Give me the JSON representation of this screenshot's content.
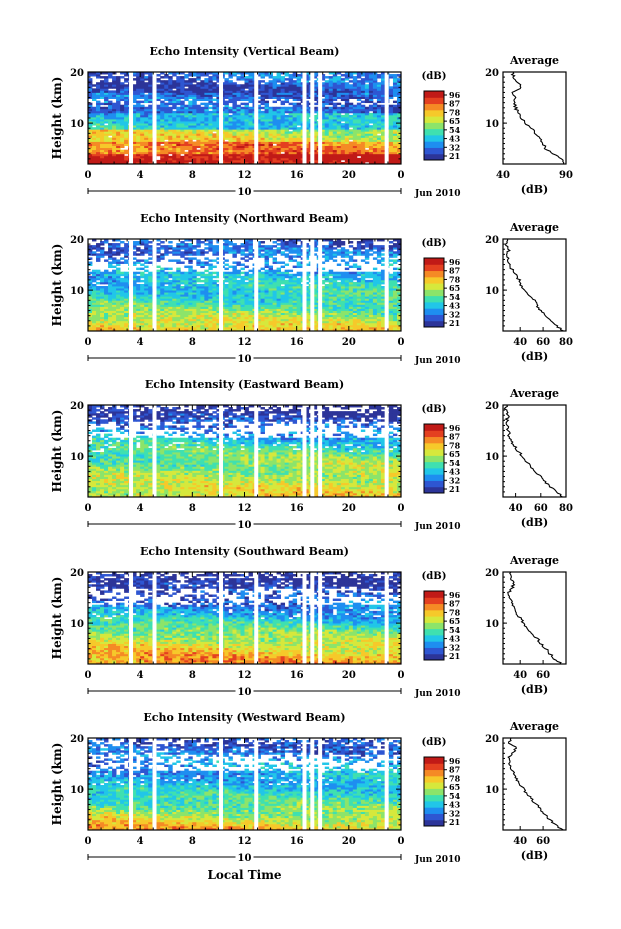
{
  "figure": {
    "xlabel": "Local Time",
    "date_label": "Jun 2010",
    "day_label": "10",
    "colorbar_unit": "(dB)",
    "colorbar_ticks": [
      "96",
      "87",
      "78",
      "65",
      "54",
      "43",
      "32",
      "21"
    ],
    "colors": [
      "#2c3499",
      "#2e56d2",
      "#1e8ef0",
      "#21c6e8",
      "#3fe0b0",
      "#8ce46a",
      "#d6e83c",
      "#f6c92a",
      "#f58a25",
      "#e44020",
      "#c11a17"
    ]
  },
  "chart_data": [
    {
      "type": "heatmap",
      "title": "Echo Intensity (Vertical Beam)",
      "ylabel": "Height (km)",
      "xlim": [
        0,
        24
      ],
      "ylim": [
        2,
        20
      ],
      "x_ticks": [
        "0",
        "4",
        "8",
        "12",
        "16",
        "20",
        "0"
      ],
      "y_ticks": [
        "10",
        "20"
      ],
      "data_gaps_hours": [
        3.3,
        5.1,
        10.2,
        12.9,
        16.6,
        17.2,
        17.8,
        22.9
      ],
      "profile": {
        "title": "Average",
        "xlabel": "(dB)",
        "xlim": [
          40,
          90
        ],
        "x_ticks": [
          "40",
          "90"
        ],
        "y_ticks": [
          "10",
          "20"
        ],
        "height_km": [
          2,
          3,
          4,
          5,
          6,
          7,
          8,
          9,
          10,
          11,
          12,
          13,
          14,
          15,
          16,
          17,
          18,
          19,
          20
        ],
        "value_db": [
          88,
          86,
          80,
          74,
          72,
          70,
          66,
          63,
          58,
          54,
          52,
          50,
          49,
          50,
          48,
          55,
          52,
          48,
          48
        ]
      }
    },
    {
      "type": "heatmap",
      "title": "Echo Intensity (Northward Beam)",
      "ylabel": "Height (km)",
      "xlim": [
        0,
        24
      ],
      "ylim": [
        2,
        20
      ],
      "x_ticks": [
        "0",
        "4",
        "8",
        "12",
        "16",
        "20",
        "0"
      ],
      "y_ticks": [
        "10",
        "20"
      ],
      "data_gaps_hours": [
        3.3,
        5.1,
        10.2,
        12.9,
        16.6,
        17.2,
        17.8,
        22.9
      ],
      "profile": {
        "title": "Average",
        "xlabel": "(dB)",
        "xlim": [
          25,
          80
        ],
        "x_ticks": [
          "40",
          "60",
          "80"
        ],
        "y_ticks": [
          "10",
          "20"
        ],
        "height_km": [
          2,
          3,
          4,
          5,
          6,
          7,
          8,
          9,
          10,
          11,
          12,
          13,
          14,
          15,
          16,
          17,
          18,
          19,
          20
        ],
        "value_db": [
          78,
          72,
          66,
          62,
          58,
          55,
          52,
          48,
          44,
          41,
          39,
          36,
          33,
          31,
          30,
          29,
          30,
          28,
          29
        ]
      }
    },
    {
      "type": "heatmap",
      "title": "Echo Intensity (Eastward Beam)",
      "ylabel": "Height (km)",
      "xlim": [
        0,
        24
      ],
      "ylim": [
        2,
        20
      ],
      "x_ticks": [
        "0",
        "4",
        "8",
        "12",
        "16",
        "20",
        "0"
      ],
      "y_ticks": [
        "10",
        "20"
      ],
      "data_gaps_hours": [
        3.3,
        5.1,
        10.2,
        12.9,
        16.6,
        17.2,
        17.8,
        22.9
      ],
      "profile": {
        "title": "Average",
        "xlabel": "(dB)",
        "xlim": [
          30,
          80
        ],
        "x_ticks": [
          "40",
          "60",
          "80"
        ],
        "y_ticks": [
          "10",
          "20"
        ],
        "height_km": [
          2,
          3,
          4,
          5,
          6,
          7,
          8,
          9,
          10,
          11,
          12,
          13,
          14,
          15,
          16,
          17,
          18,
          19,
          20
        ],
        "value_db": [
          78,
          73,
          68,
          63,
          60,
          56,
          52,
          48,
          45,
          42,
          39,
          37,
          35,
          34,
          33,
          33,
          34,
          32,
          33
        ]
      }
    },
    {
      "type": "heatmap",
      "title": "Echo Intensity (Southward Beam)",
      "ylabel": "Height (km)",
      "xlim": [
        0,
        24
      ],
      "ylim": [
        2,
        20
      ],
      "x_ticks": [
        "0",
        "4",
        "8",
        "12",
        "16",
        "20",
        "0"
      ],
      "y_ticks": [
        "10",
        "20"
      ],
      "data_gaps_hours": [
        3.3,
        5.1,
        10.2,
        12.9,
        16.6,
        17.2,
        17.8,
        22.9
      ],
      "profile": {
        "title": "Average",
        "xlabel": "(dB)",
        "xlim": [
          25,
          80
        ],
        "x_ticks": [
          "40",
          "60"
        ],
        "y_ticks": [
          "10",
          "20"
        ],
        "height_km": [
          2,
          3,
          4,
          5,
          6,
          7,
          8,
          9,
          10,
          11,
          12,
          13,
          14,
          15,
          16,
          17,
          18,
          19,
          20
        ],
        "value_db": [
          76,
          70,
          66,
          62,
          58,
          55,
          50,
          47,
          43,
          40,
          37,
          35,
          32,
          31,
          30,
          33,
          35,
          31,
          32
        ]
      }
    },
    {
      "type": "heatmap",
      "title": "Echo Intensity (Westward Beam)",
      "ylabel": "Height (km)",
      "xlim": [
        0,
        24
      ],
      "ylim": [
        2,
        20
      ],
      "x_ticks": [
        "0",
        "4",
        "8",
        "12",
        "16",
        "20",
        "0"
      ],
      "y_ticks": [
        "10",
        "20"
      ],
      "data_gaps_hours": [
        3.3,
        5.1,
        10.2,
        12.9,
        16.6,
        17.2,
        17.8,
        22.9
      ],
      "profile": {
        "title": "Average",
        "xlabel": "(dB)",
        "xlim": [
          25,
          80
        ],
        "x_ticks": [
          "40",
          "60"
        ],
        "y_ticks": [
          "10",
          "20"
        ],
        "height_km": [
          2,
          3,
          4,
          5,
          6,
          7,
          8,
          9,
          10,
          11,
          12,
          13,
          14,
          15,
          16,
          17,
          18,
          19,
          20
        ],
        "value_db": [
          77,
          71,
          66,
          62,
          58,
          54,
          50,
          46,
          43,
          40,
          37,
          35,
          32,
          31,
          30,
          33,
          37,
          31,
          32
        ]
      }
    }
  ]
}
